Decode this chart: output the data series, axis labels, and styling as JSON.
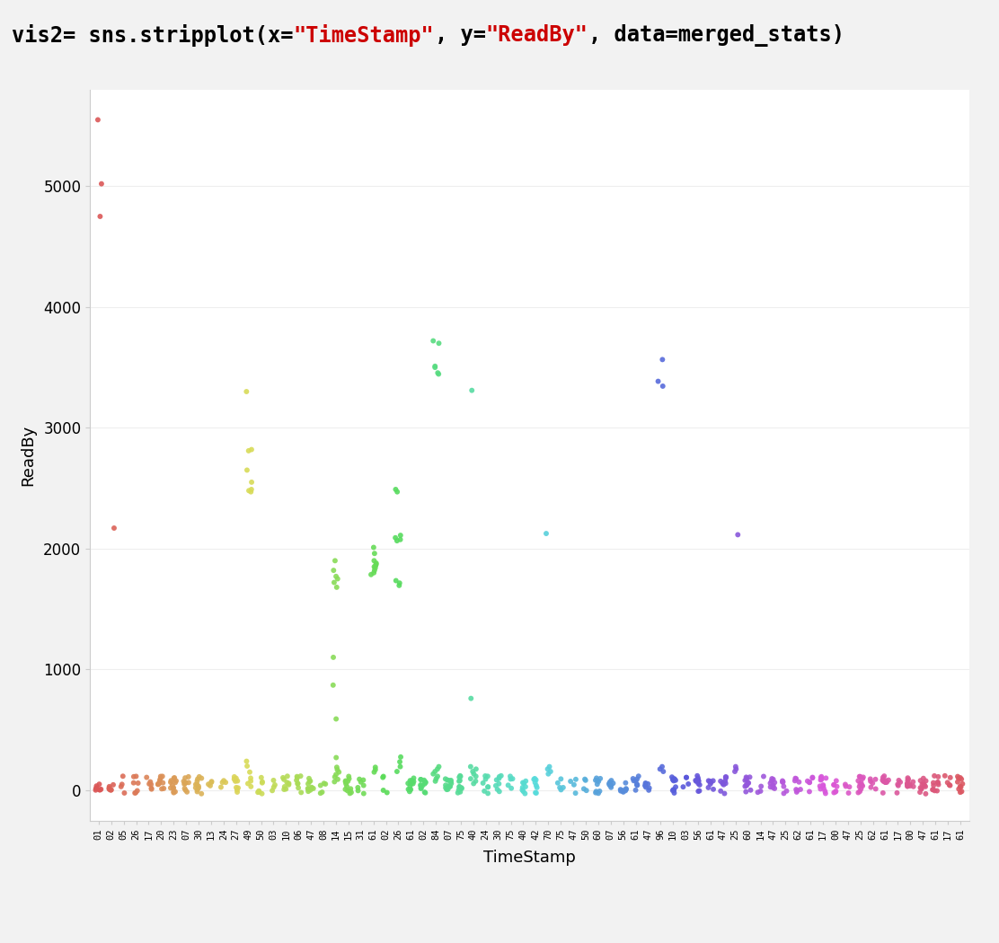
{
  "xlabel": "TimeStamp",
  "ylabel": "ReadBy",
  "ylim": [
    -250,
    5800
  ],
  "yticks": [
    0,
    1000,
    2000,
    3000,
    4000,
    5000
  ],
  "background_color": "#f2f2f2",
  "plot_bg_color": "#ffffff",
  "header_bg_color": "#ebebeb",
  "num_categories": 70,
  "seed": 42,
  "dot_size": 18,
  "header_fontsize": 17,
  "seaborn_colors": [
    "#ff9999",
    "#ff7f0e",
    "#ffbb78",
    "#aec7e8",
    "#1f77b4",
    "#98df8a",
    "#2ca02c",
    "#d62728",
    "#9467bd",
    "#8c564b",
    "#e377c2",
    "#7f7f7f",
    "#bcbd22",
    "#17becf"
  ],
  "code_parts": [
    {
      "text": "vis2= sns.stripplot(x=",
      "color": "#000000"
    },
    {
      "text": "\"TimeStamp\"",
      "color": "#cc0000"
    },
    {
      "text": ", y=",
      "color": "#000000"
    },
    {
      "text": "\"ReadBy\"",
      "color": "#cc0000"
    },
    {
      "text": ", data=merged_stats)",
      "color": "#000000"
    }
  ]
}
